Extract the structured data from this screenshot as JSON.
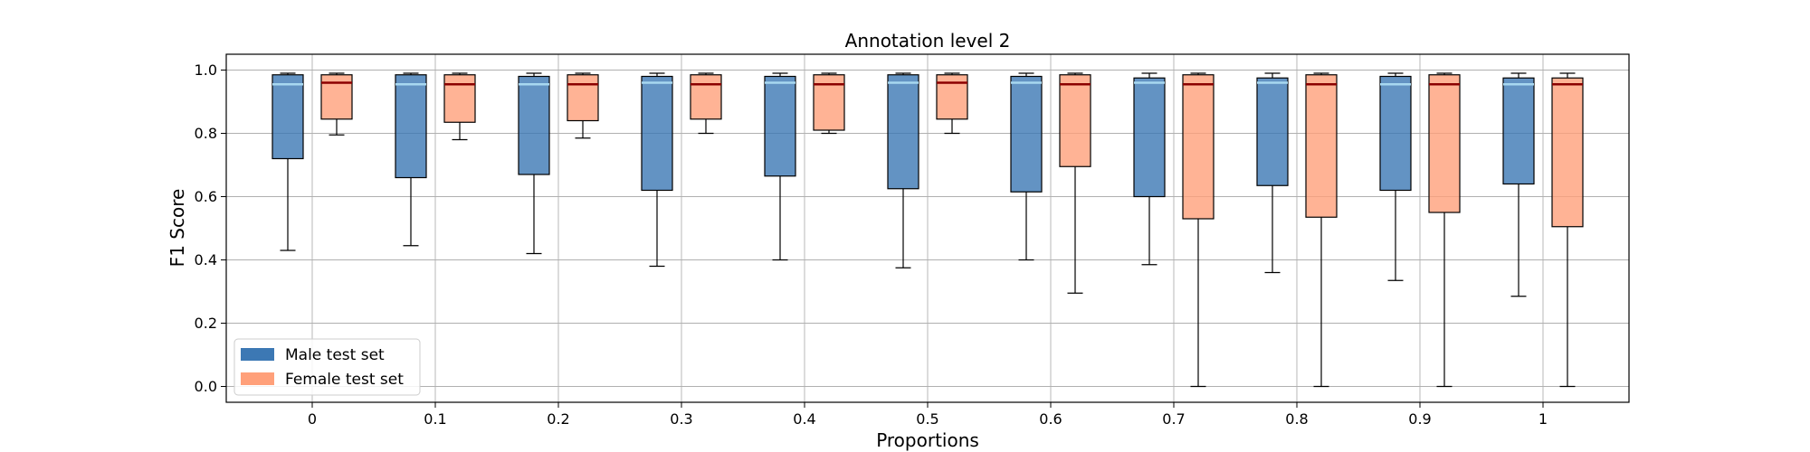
{
  "chart_data": {
    "type": "box",
    "title": "Annotation level 2",
    "xlabel": "Proportions",
    "ylabel": "F1 Score",
    "categories": [
      "0",
      "0.1",
      "0.2",
      "0.3",
      "0.4",
      "0.5",
      "0.6",
      "0.7",
      "0.8",
      "0.9",
      "1"
    ],
    "ylim": [
      -0.05,
      1.05
    ],
    "yticks": [
      "0.0",
      "0.2",
      "0.4",
      "0.6",
      "0.8",
      "1.0"
    ],
    "grid": true,
    "legend_position": "lower-left",
    "series": [
      {
        "name": "Male test set",
        "color": "#3c78b4",
        "median_color": "#a8d8f0",
        "boxes": [
          {
            "whislo": 0.43,
            "q1": 0.72,
            "med": 0.955,
            "q3": 0.985,
            "whishi": 0.99
          },
          {
            "whislo": 0.445,
            "q1": 0.66,
            "med": 0.955,
            "q3": 0.985,
            "whishi": 0.99
          },
          {
            "whislo": 0.42,
            "q1": 0.67,
            "med": 0.955,
            "q3": 0.98,
            "whishi": 0.99
          },
          {
            "whislo": 0.38,
            "q1": 0.62,
            "med": 0.96,
            "q3": 0.98,
            "whishi": 0.99
          },
          {
            "whislo": 0.4,
            "q1": 0.665,
            "med": 0.96,
            "q3": 0.98,
            "whishi": 0.99
          },
          {
            "whislo": 0.375,
            "q1": 0.625,
            "med": 0.96,
            "q3": 0.985,
            "whishi": 0.99
          },
          {
            "whislo": 0.4,
            "q1": 0.615,
            "med": 0.96,
            "q3": 0.98,
            "whishi": 0.99
          },
          {
            "whislo": 0.385,
            "q1": 0.6,
            "med": 0.96,
            "q3": 0.975,
            "whishi": 0.99
          },
          {
            "whislo": 0.36,
            "q1": 0.635,
            "med": 0.96,
            "q3": 0.975,
            "whishi": 0.99
          },
          {
            "whislo": 0.335,
            "q1": 0.62,
            "med": 0.955,
            "q3": 0.98,
            "whishi": 0.99
          },
          {
            "whislo": 0.285,
            "q1": 0.64,
            "med": 0.955,
            "q3": 0.975,
            "whishi": 0.99
          }
        ]
      },
      {
        "name": "Female test set",
        "color": "#ffa07a",
        "median_color": "#8b0000",
        "boxes": [
          {
            "whislo": 0.795,
            "q1": 0.845,
            "med": 0.96,
            "q3": 0.985,
            "whishi": 0.99
          },
          {
            "whislo": 0.78,
            "q1": 0.835,
            "med": 0.955,
            "q3": 0.985,
            "whishi": 0.99
          },
          {
            "whislo": 0.785,
            "q1": 0.84,
            "med": 0.955,
            "q3": 0.985,
            "whishi": 0.99
          },
          {
            "whislo": 0.8,
            "q1": 0.845,
            "med": 0.955,
            "q3": 0.985,
            "whishi": 0.99
          },
          {
            "whislo": 0.8,
            "q1": 0.81,
            "med": 0.955,
            "q3": 0.985,
            "whishi": 0.99
          },
          {
            "whislo": 0.8,
            "q1": 0.845,
            "med": 0.96,
            "q3": 0.985,
            "whishi": 0.99
          },
          {
            "whislo": 0.295,
            "q1": 0.695,
            "med": 0.955,
            "q3": 0.985,
            "whishi": 0.99
          },
          {
            "whislo": 0.0,
            "q1": 0.53,
            "med": 0.955,
            "q3": 0.985,
            "whishi": 0.99
          },
          {
            "whislo": 0.0,
            "q1": 0.535,
            "med": 0.955,
            "q3": 0.985,
            "whishi": 0.99
          },
          {
            "whislo": 0.0,
            "q1": 0.55,
            "med": 0.955,
            "q3": 0.985,
            "whishi": 0.99
          },
          {
            "whislo": 0.0,
            "q1": 0.505,
            "med": 0.955,
            "q3": 0.975,
            "whishi": 0.99
          }
        ]
      }
    ]
  }
}
